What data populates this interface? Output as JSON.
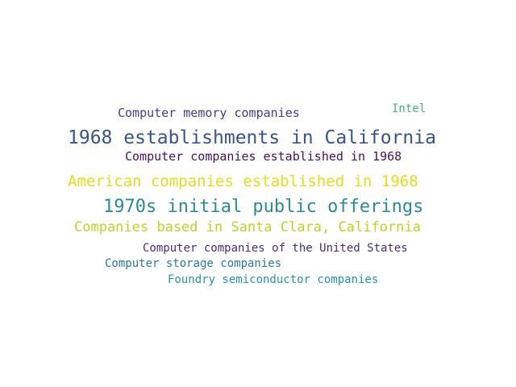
{
  "words": [
    {
      "text": "Computer memory companies",
      "color": "#4a3a87"
    },
    {
      "text": "Intel",
      "color": "#3fb57b"
    },
    {
      "text": "1968 establishments in California",
      "color": "#3b528b"
    },
    {
      "text": "Computer companies established in 1968",
      "color": "#45105e"
    },
    {
      "text": "American companies established in 1968",
      "color": "#e0de1c"
    },
    {
      "text": "1970s initial public offerings",
      "color": "#2a8d8d"
    },
    {
      "text": "Companies based in Santa Clara, California",
      "color": "#b8d329"
    },
    {
      "text": "Computer companies of the United States",
      "color": "#46306e"
    },
    {
      "text": "Computer storage companies",
      "color": "#2b7a8f"
    },
    {
      "text": "Foundry semiconductor companies",
      "color": "#24979a"
    }
  ]
}
